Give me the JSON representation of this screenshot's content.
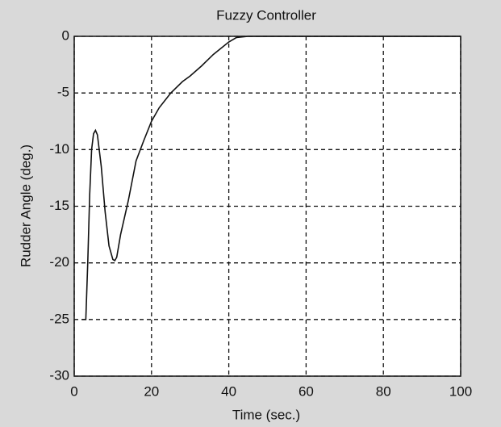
{
  "chart_data": {
    "type": "line",
    "title": "Fuzzy Controller",
    "x_label": "Time (sec.)",
    "y_label": "Rudder Angle (deg.)",
    "x": [
      2,
      3,
      3.5,
      4,
      4.5,
      5,
      5.5,
      6,
      7,
      8,
      9,
      10,
      10.5,
      11,
      12,
      14,
      16,
      18,
      20,
      22,
      25,
      28,
      30,
      33,
      36,
      40,
      42,
      45,
      50,
      60,
      80,
      100
    ],
    "series": [
      {
        "name": "Rudder Angle",
        "color": "#111111",
        "values": [
          -25,
          -25,
          -20,
          -14,
          -10,
          -8.6,
          -8.3,
          -8.7,
          -11.5,
          -15.5,
          -18.5,
          -19.7,
          -19.8,
          -19.5,
          -17.5,
          -14.5,
          -11,
          -9.2,
          -7.5,
          -6.3,
          -5,
          -4,
          -3.5,
          -2.6,
          -1.6,
          -0.5,
          -0.1,
          0,
          0,
          0,
          0,
          0
        ]
      }
    ],
    "xlim": [
      0,
      100
    ],
    "xticks": [
      0,
      20,
      40,
      60,
      80,
      100
    ],
    "ylim": [
      -30,
      0
    ],
    "yticks": [
      -30,
      -25,
      -20,
      -15,
      -10,
      -5,
      0
    ],
    "grid": true
  }
}
